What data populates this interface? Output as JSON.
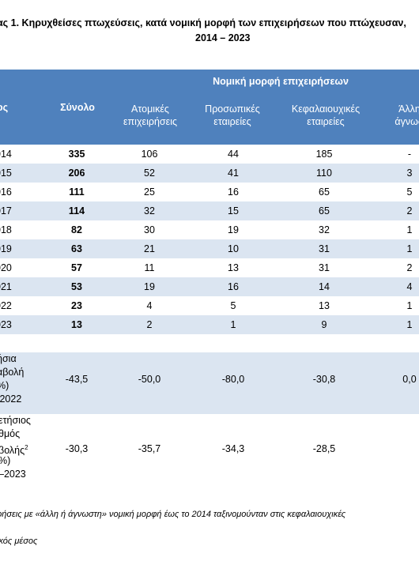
{
  "title": {
    "line1": "ας 1. Κηρυχθείσες πτωχεύσεις, κατά νομική μορφή των επιχειρήσεων που πτώχευσαν,",
    "line2": "2014 – 2023"
  },
  "header": {
    "year_col": "ος",
    "total": "Σύνολο",
    "group": "Νομική μορφή επιχειρήσεων",
    "sole_line1": "Ατομικές",
    "sole_line2": "επιχειρήσεις",
    "personal_line1": "Προσωπικές",
    "personal_line2": "εταιρείες",
    "capital_line1": "Κεφαλαιουχικές",
    "capital_line2": "εταιρείες",
    "other_line1": "Άλλη",
    "other_line2": "άγνωσ"
  },
  "rows": [
    {
      "year": "014",
      "total": "335",
      "sole": "106",
      "personal": "44",
      "capital": "185",
      "other": "-"
    },
    {
      "year": "015",
      "total": "206",
      "sole": "52",
      "personal": "41",
      "capital": "110",
      "other": "3"
    },
    {
      "year": "016",
      "total": "111",
      "sole": "25",
      "personal": "16",
      "capital": "65",
      "other": "5"
    },
    {
      "year": "017",
      "total": "114",
      "sole": "32",
      "personal": "15",
      "capital": "65",
      "other": "2"
    },
    {
      "year": "018",
      "total": "82",
      "sole": "30",
      "personal": "19",
      "capital": "32",
      "other": "1"
    },
    {
      "year": "019",
      "total": "63",
      "sole": "21",
      "personal": "10",
      "capital": "31",
      "other": "1"
    },
    {
      "year": "020",
      "total": "57",
      "sole": "11",
      "personal": "13",
      "capital": "31",
      "other": "2"
    },
    {
      "year": "021",
      "total": "53",
      "sole": "19",
      "personal": "16",
      "capital": "14",
      "other": "4"
    },
    {
      "year": "022",
      "total": "23",
      "sole": "4",
      "personal": "5",
      "capital": "13",
      "other": "1"
    },
    {
      "year": "023",
      "total": "13",
      "sole": "2",
      "personal": "1",
      "capital": "9",
      "other": "1"
    }
  ],
  "annual_change": {
    "label1": "ήσια",
    "label2": "αβολή",
    "label3": "%)",
    "label4": "/2022",
    "total": "-43,5",
    "sole": "-50,0",
    "personal": "-80,0",
    "capital": "-30,8",
    "other": "0,0"
  },
  "avg_change": {
    "label1": "ετήσιος",
    "label2": "θμός",
    "label3": "βολής",
    "label3_sup": "2",
    "label4": "%)",
    "label5": "–2023",
    "total": "-30,3",
    "sole": "-35,7",
    "personal": "-34,3",
    "capital": "-28,5"
  },
  "footnotes": {
    "note1": "ρήσεις με «άλλη ή άγνωστη» νομική μορφή έως το 2014 ταξινομούνταν στις κεφαλαιουχικές",
    "note2": "ικός μέσος"
  }
}
